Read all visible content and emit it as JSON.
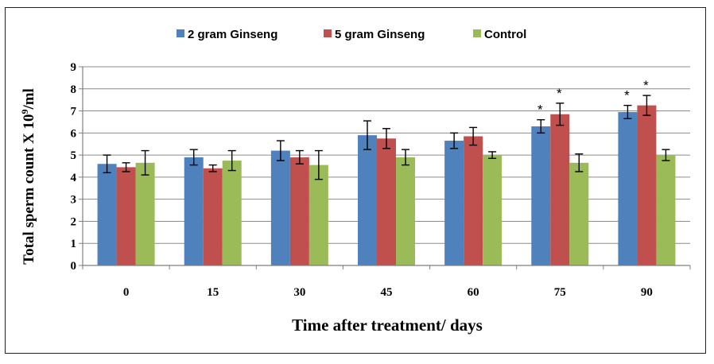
{
  "chart_data": {
    "type": "bar",
    "xlabel": "Time after treatment/ days",
    "ylabel_prefix": "Total sperm count X 10",
    "ylabel_sup": "9",
    "ylabel_suffix": "/ml",
    "ylim": [
      0,
      9
    ],
    "yticks": [
      "0",
      "1",
      "2",
      "3",
      "4",
      "5",
      "6",
      "7",
      "8",
      "9"
    ],
    "grid": true,
    "legend_position": "top",
    "categories": [
      "0",
      "15",
      "30",
      "45",
      "60",
      "75",
      "90"
    ],
    "series": [
      {
        "name": "2 gram Ginseng",
        "color": "#4F81BD",
        "values": [
          4.6,
          4.9,
          5.2,
          5.9,
          5.65,
          6.3,
          6.95
        ],
        "errors": [
          0.4,
          0.35,
          0.45,
          0.65,
          0.35,
          0.3,
          0.3
        ],
        "significant": [
          false,
          false,
          false,
          false,
          false,
          true,
          true
        ]
      },
      {
        "name": "5 gram Ginseng",
        "color": "#C0504D",
        "values": [
          4.45,
          4.4,
          4.9,
          5.75,
          5.85,
          6.85,
          7.25
        ],
        "errors": [
          0.2,
          0.15,
          0.3,
          0.45,
          0.4,
          0.5,
          0.45
        ],
        "significant": [
          false,
          false,
          false,
          false,
          false,
          true,
          true
        ]
      },
      {
        "name": "Control",
        "color": "#9BBB59",
        "values": [
          4.65,
          4.75,
          4.55,
          4.9,
          5.0,
          4.65,
          5.0
        ],
        "errors": [
          0.55,
          0.45,
          0.65,
          0.35,
          0.15,
          0.4,
          0.25
        ],
        "significant": [
          false,
          false,
          false,
          false,
          false,
          false,
          false
        ]
      }
    ],
    "significance_marker": "*"
  }
}
